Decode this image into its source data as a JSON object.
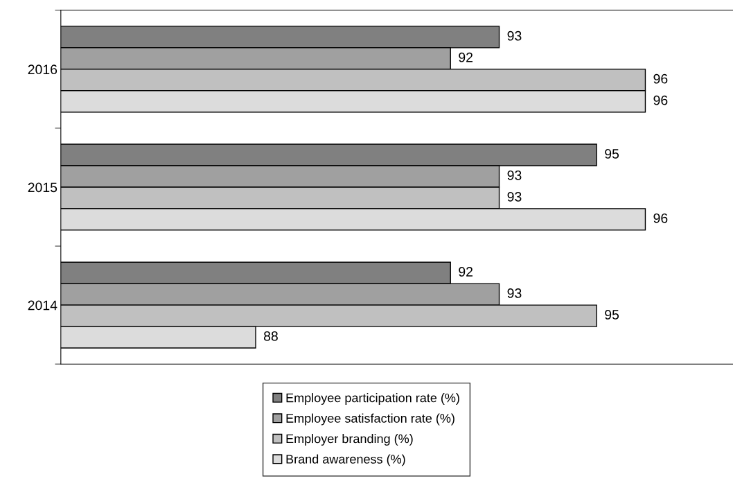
{
  "chart_data": {
    "type": "bar",
    "orientation": "horizontal",
    "categories": [
      "2016",
      "2015",
      "2014"
    ],
    "series": [
      {
        "name": "Employee participation rate (%)",
        "color": "#808080",
        "values": [
          93,
          95,
          92
        ]
      },
      {
        "name": "Employee satisfaction rate (%)",
        "color": "#a0a0a0",
        "values": [
          92,
          93,
          93
        ]
      },
      {
        "name": "Employer branding (%)",
        "color": "#c0c0c0",
        "values": [
          96,
          93,
          95
        ]
      },
      {
        "name": "Brand awareness (%)",
        "color": "#dcdcdc",
        "values": [
          96,
          96,
          88
        ]
      }
    ],
    "xlim": [
      84,
      97.8
    ],
    "tick_labels": "y",
    "data_labels": true,
    "legend": "bottom",
    "grid": false
  }
}
